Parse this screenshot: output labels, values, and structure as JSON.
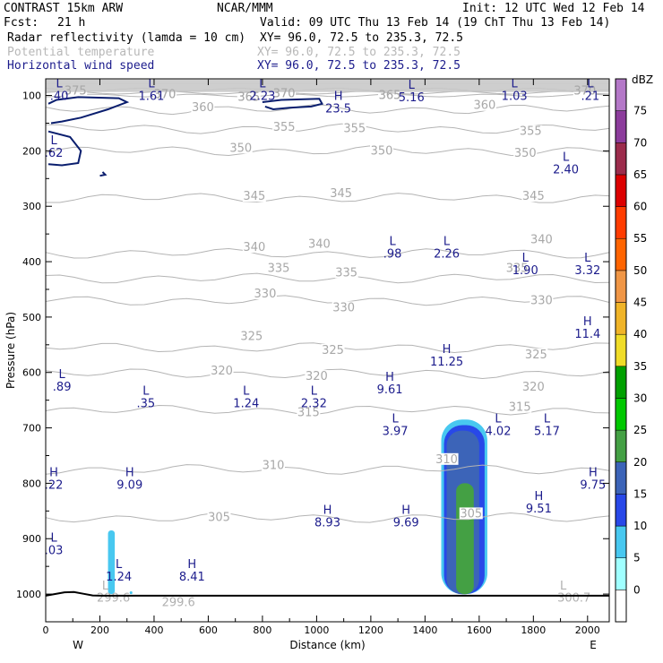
{
  "header": {
    "model": "CONTRAST 15km ARW",
    "org": "NCAR/MMM",
    "init": "Init: 12 UTC Wed 12 Feb 14",
    "fcst_label": "Fcst:",
    "fcst_value": "21 h",
    "valid": "Valid: 09 UTC Thu 13 Feb 14 (19 ChT Thu 13 Feb 14)",
    "fields": [
      {
        "name": "Radar reflectivity (lamda = 10 cm)",
        "xy": "XY=  96.0, 72.5 to 235.3, 72.5",
        "style": "black"
      },
      {
        "name": "Potential temperature",
        "xy": "XY=  96.0, 72.5 to 235.3, 72.5",
        "style": "muted"
      },
      {
        "name": "Horizontal wind speed",
        "xy": "XY=  96.0, 72.5 to 235.3, 72.5",
        "style": "blue"
      }
    ]
  },
  "chart_data": {
    "type": "cross-section",
    "xlabel": "Distance (km)",
    "ylabel": "Pressure (hPa)",
    "xlim": [
      0,
      2080
    ],
    "ylim": [
      1050,
      70
    ],
    "xticks": [
      0,
      200,
      400,
      600,
      800,
      1000,
      1200,
      1400,
      1600,
      1800,
      2000
    ],
    "yticks": [
      100,
      200,
      300,
      400,
      500,
      600,
      700,
      800,
      900,
      1000
    ],
    "x_endpoints": {
      "left": "W",
      "right": "E"
    },
    "theta_contours": {
      "field": "Potential temperature",
      "unit": "K",
      "levels": [
        {
          "value": 305,
          "p": 862,
          "labels": [
            {
              "x": 640,
              "p": 862
            },
            {
              "x": 1570,
              "p": 855
            }
          ]
        },
        {
          "value": 310,
          "p": 775,
          "labels": [
            {
              "x": 840,
              "p": 768
            },
            {
              "x": 1480,
              "p": 757
            }
          ]
        },
        {
          "value": 315,
          "p": 668,
          "labels": [
            {
              "x": 970,
              "p": 672
            },
            {
              "x": 1750,
              "p": 663
            }
          ]
        },
        {
          "value": 320,
          "p": 602,
          "labels": [
            {
              "x": 650,
              "p": 597
            },
            {
              "x": 1000,
              "p": 607
            },
            {
              "x": 1800,
              "p": 626
            }
          ]
        },
        {
          "value": 325,
          "p": 555,
          "labels": [
            {
              "x": 760,
              "p": 535
            },
            {
              "x": 1060,
              "p": 560
            },
            {
              "x": 1810,
              "p": 568
            }
          ]
        },
        {
          "value": 330,
          "p": 470,
          "labels": [
            {
              "x": 810,
              "p": 458
            },
            {
              "x": 1100,
              "p": 483
            },
            {
              "x": 1830,
              "p": 470
            }
          ]
        },
        {
          "value": 335,
          "p": 430,
          "labels": [
            {
              "x": 860,
              "p": 412
            },
            {
              "x": 1110,
              "p": 420
            },
            {
              "x": 1740,
              "p": 412
            }
          ]
        },
        {
          "value": 340,
          "p": 385,
          "labels": [
            {
              "x": 770,
              "p": 374
            },
            {
              "x": 1010,
              "p": 368
            },
            {
              "x": 1830,
              "p": 360
            }
          ]
        },
        {
          "value": 345,
          "p": 285,
          "labels": [
            {
              "x": 770,
              "p": 282
            },
            {
              "x": 1090,
              "p": 277
            },
            {
              "x": 1800,
              "p": 282
            }
          ]
        },
        {
          "value": 350,
          "p": 200,
          "labels": [
            {
              "x": 720,
              "p": 195
            },
            {
              "x": 1240,
              "p": 200
            },
            {
              "x": 1770,
              "p": 204
            }
          ]
        },
        {
          "value": 355,
          "p": 160,
          "labels": [
            {
              "x": 880,
              "p": 157
            },
            {
              "x": 1140,
              "p": 160
            },
            {
              "x": 1790,
              "p": 165
            }
          ]
        },
        {
          "value": 360,
          "p": 125,
          "labels": [
            {
              "x": 580,
              "p": 122
            },
            {
              "x": 1620,
              "p": 118
            }
          ]
        },
        {
          "value": 365,
          "p": 100,
          "labels": [
            {
              "x": 750,
              "p": 103
            },
            {
              "x": 1270,
              "p": 100
            }
          ]
        },
        {
          "value": 370,
          "p": 95,
          "labels": [
            {
              "x": 440,
              "p": 98
            },
            {
              "x": 880,
              "p": 97
            },
            {
              "x": 1990,
              "p": 92
            }
          ]
        },
        {
          "value": 375,
          "p": 90,
          "labels": [
            {
              "x": 110,
              "p": 92
            }
          ]
        }
      ],
      "surface_labels": [
        {
          "text": "299.6",
          "x": 490,
          "p": 1015
        },
        {
          "text": "L",
          "x": 220,
          "p": 985
        },
        {
          "text": "299.6",
          "x": 250,
          "p": 1007
        },
        {
          "text": "L",
          "x": 1910,
          "p": 985
        },
        {
          "text": "300.7",
          "x": 1950,
          "p": 1007
        }
      ]
    },
    "wind_extrema": {
      "field": "Horizontal wind speed",
      "points": [
        {
          "type": "L",
          "value": ".40",
          "x": 50,
          "p": 85
        },
        {
          "type": "L",
          "value": "1.61",
          "x": 390,
          "p": 85
        },
        {
          "type": "L",
          "value": "2.23",
          "x": 800,
          "p": 85
        },
        {
          "type": "H",
          "value": "23.5",
          "x": 1080,
          "p": 108
        },
        {
          "type": "L",
          "value": "5.16",
          "x": 1350,
          "p": 88
        },
        {
          "type": "L",
          "value": "1.03",
          "x": 1730,
          "p": 85
        },
        {
          "type": "L",
          "value": ".21",
          "x": 2010,
          "p": 85
        },
        {
          "type": "L",
          "value": ".62",
          "x": 30,
          "p": 188
        },
        {
          "type": "L",
          "value": "2.40",
          "x": 1920,
          "p": 218
        },
        {
          "type": "L",
          "value": ".98",
          "x": 1280,
          "p": 370
        },
        {
          "type": "L",
          "value": "2.26",
          "x": 1480,
          "p": 370
        },
        {
          "type": "L",
          "value": "1.90",
          "x": 1770,
          "p": 400
        },
        {
          "type": "L",
          "value": "3.32",
          "x": 2000,
          "p": 400
        },
        {
          "type": "H",
          "value": "11.4",
          "x": 2000,
          "p": 515
        },
        {
          "type": "H",
          "value": "11.25",
          "x": 1480,
          "p": 565
        },
        {
          "type": "L",
          "value": ".89",
          "x": 60,
          "p": 610
        },
        {
          "type": "H",
          "value": "9.61",
          "x": 1270,
          "p": 615
        },
        {
          "type": "L",
          "value": ".35",
          "x": 370,
          "p": 640
        },
        {
          "type": "L",
          "value": "1.24",
          "x": 740,
          "p": 640
        },
        {
          "type": "L",
          "value": "2.32",
          "x": 990,
          "p": 640
        },
        {
          "type": "L",
          "value": "3.97",
          "x": 1290,
          "p": 690
        },
        {
          "type": "L",
          "value": "4.02",
          "x": 1670,
          "p": 690
        },
        {
          "type": "L",
          "value": "5.17",
          "x": 1850,
          "p": 690
        },
        {
          "type": "H",
          "value": ".22",
          "x": 30,
          "p": 787
        },
        {
          "type": "H",
          "value": "9.09",
          "x": 310,
          "p": 787
        },
        {
          "type": "H",
          "value": "9.75",
          "x": 2020,
          "p": 787
        },
        {
          "type": "H",
          "value": "9.51",
          "x": 1820,
          "p": 830
        },
        {
          "type": "H",
          "value": "8.93",
          "x": 1040,
          "p": 855
        },
        {
          "type": "H",
          "value": "9.69",
          "x": 1330,
          "p": 855
        },
        {
          "type": "L",
          "value": ".03",
          "x": 30,
          "p": 905
        },
        {
          "type": "L",
          "value": "1.24",
          "x": 270,
          "p": 953
        },
        {
          "type": "H",
          "value": "8.41",
          "x": 540,
          "p": 953
        }
      ],
      "contours": [
        {
          "level": 20,
          "points": [
            [
              10,
              115
            ],
            [
              40,
              108
            ],
            [
              120,
              103
            ],
            [
              270,
              105
            ],
            [
              300,
              112
            ],
            [
              230,
              125
            ],
            [
              130,
              140
            ],
            [
              60,
              147
            ],
            [
              20,
              150
            ]
          ]
        },
        {
          "level": 20,
          "points": [
            [
              800,
              112
            ],
            [
              870,
              108
            ],
            [
              1010,
              106
            ],
            [
              1020,
              115
            ],
            [
              980,
              120
            ],
            [
              900,
              122
            ],
            [
              840,
              125
            ],
            [
              810,
              120
            ]
          ]
        },
        {
          "level": 20,
          "points": [
            [
              10,
              165
            ],
            [
              90,
              175
            ],
            [
              130,
              200
            ],
            [
              120,
              222
            ],
            [
              60,
              226
            ],
            [
              10,
              224
            ]
          ]
        },
        {
          "level": 20,
          "points": [
            [
              210,
              238
            ],
            [
              220,
              243
            ],
            [
              200,
              245
            ]
          ]
        }
      ]
    },
    "reflectivity": {
      "field": "Radar reflectivity (lamda = 10 cm)",
      "unit": "dBZ",
      "cells": [
        {
          "x0": 1460,
          "x1": 1630,
          "p_top": 685,
          "p_bot": 1000,
          "dbz": 5
        },
        {
          "x0": 1470,
          "x1": 1620,
          "p_top": 695,
          "p_bot": 1000,
          "dbz": 10
        },
        {
          "x0": 1480,
          "x1": 1600,
          "p_top": 705,
          "p_bot": 1000,
          "dbz": 15
        },
        {
          "x0": 1515,
          "x1": 1580,
          "p_top": 800,
          "p_bot": 1000,
          "dbz": 20
        },
        {
          "x0": 230,
          "x1": 255,
          "p_top": 885,
          "p_bot": 1000,
          "dbz": 5
        },
        {
          "x0": 310,
          "x1": 320,
          "p_top": 995,
          "p_bot": 1000,
          "dbz": 5
        }
      ]
    },
    "terrain": {
      "p_surface": 1003,
      "peak_x": 90,
      "peak_p": 995
    },
    "colorbar": {
      "unit": "dBZ",
      "levels": [
        "0",
        "5",
        "10",
        "15",
        "20",
        "25",
        "30",
        "35",
        "40",
        "45",
        "50",
        "55",
        "60",
        "65",
        "70",
        "75"
      ],
      "colors": [
        "#ffffff",
        "#a0ffff",
        "#48c8f0",
        "#2848e8",
        "#3c64b8",
        "#44a044",
        "#00c800",
        "#00a000",
        "#f0dc28",
        "#f0b428",
        "#f09646",
        "#ff6400",
        "#ff3c00",
        "#dc0000",
        "#9c2c4c",
        "#8c3c9c",
        "#b478c8"
      ]
    }
  }
}
